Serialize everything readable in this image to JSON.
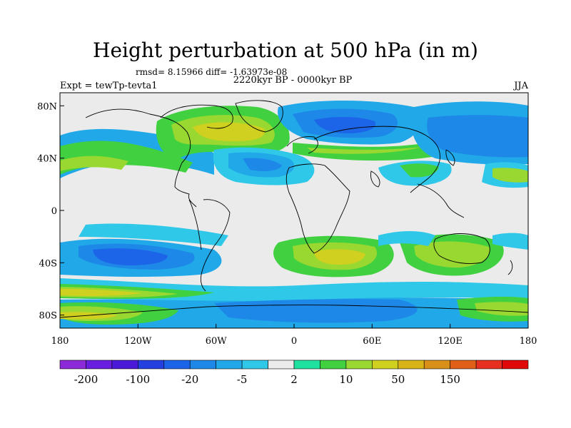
{
  "header": {
    "title": "Height perturbation at 500 hPa (in m)",
    "stats": "rmsd= 8.15966 diff= -1.63973e-08",
    "expt": "Expt = tewTp-tevta1",
    "period": "2220kyr BP - 0000kyr BP",
    "season": "JJA"
  },
  "axes": {
    "lat_ticks": [
      {
        "label": "80N",
        "lat": 80
      },
      {
        "label": "40N",
        "lat": 40
      },
      {
        "label": "0",
        "lat": 0
      },
      {
        "label": "40S",
        "lat": -40
      },
      {
        "label": "80S",
        "lat": -80
      }
    ],
    "lon_ticks": [
      {
        "label": "180",
        "lon": -180
      },
      {
        "label": "120W",
        "lon": -120
      },
      {
        "label": "60W",
        "lon": -60
      },
      {
        "label": "0",
        "lon": 0
      },
      {
        "label": "60E",
        "lon": 60
      },
      {
        "label": "120E",
        "lon": 120
      },
      {
        "label": "180",
        "lon": 180
      }
    ]
  },
  "colorbar": {
    "colors": [
      "#8c2ad8",
      "#6a1fe0",
      "#4a1ad8",
      "#2440e0",
      "#1c64e8",
      "#1e88e8",
      "#20a8e8",
      "#30c8e8",
      "#ebebeb",
      "#20e0a0",
      "#40d040",
      "#98d830",
      "#d0d020",
      "#d8b418",
      "#d89018",
      "#e06018",
      "#e83020",
      "#e00808"
    ],
    "labels": [
      {
        "text": "-200",
        "index": 1
      },
      {
        "text": "-100",
        "index": 3
      },
      {
        "text": "-20",
        "index": 5
      },
      {
        "text": "-5",
        "index": 7
      },
      {
        "text": "2",
        "index": 9
      },
      {
        "text": "10",
        "index": 11
      },
      {
        "text": "50",
        "index": 13
      },
      {
        "text": "150",
        "index": 15
      }
    ]
  }
}
